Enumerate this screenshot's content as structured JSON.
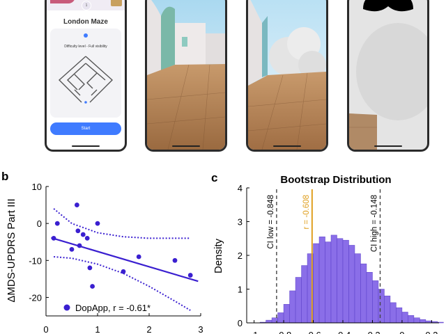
{
  "figure": {
    "panel_b_letter": "b",
    "panel_c_letter": "c"
  },
  "phones": {
    "menu": {
      "title": "London Maze",
      "subtitle": "Difficulty level - Full visibility",
      "start_label": "Start",
      "badge": "1",
      "accent_color": "#3f7bff"
    }
  },
  "chart_data": [
    {
      "type": "scatter",
      "title": "",
      "xlabel": "",
      "ylabel": "ΔMDS-UPDRS Part III",
      "xlim": [
        0,
        3
      ],
      "ylim": [
        -25,
        10
      ],
      "xticks": [
        "0",
        "1",
        "2",
        "3"
      ],
      "yticks": [
        "10",
        "0",
        "-10",
        "-20"
      ],
      "series": [
        {
          "name": "DopApp, r = -0.61*",
          "color": "#3a1fd0",
          "x": [
            0.15,
            0.22,
            0.5,
            0.6,
            0.62,
            0.65,
            0.72,
            0.8,
            0.85,
            0.9,
            1.0,
            1.5,
            1.8,
            2.5,
            2.8
          ],
          "y": [
            -4,
            0,
            -7,
            5,
            -2,
            -6,
            -3,
            -4,
            -12,
            -17,
            0,
            -13,
            -9,
            -10,
            -14
          ]
        }
      ],
      "fit": {
        "slope": -4.13,
        "intercept": -3.45,
        "color": "#3a1fd0"
      },
      "ci_band": {
        "x": [
          0.15,
          0.5,
          1.0,
          1.5,
          2.0,
          2.5,
          2.8
        ],
        "upper": [
          4,
          0,
          -2.5,
          -3.6,
          -4,
          -4,
          -4
        ],
        "lower": [
          -9,
          -9.4,
          -11,
          -13.5,
          -17,
          -21,
          -23.5
        ]
      },
      "legend": "bottom-left"
    },
    {
      "type": "bar",
      "title": "Bootstrap Distribution",
      "xlabel": "",
      "ylabel": "Density",
      "xlim": [
        -1.05,
        0.25
      ],
      "ylim": [
        0,
        4
      ],
      "xticks": [
        "-1",
        "-0.8",
        "-0.6",
        "-0.4",
        "-0.2",
        "0",
        "0.2"
      ],
      "yticks": [
        "0",
        "1",
        "2",
        "3",
        "4"
      ],
      "bar_color": "#8a6ee8",
      "bin_start": -0.96,
      "bin_width": 0.04,
      "values": [
        0.02,
        0.08,
        0.15,
        0.3,
        0.55,
        0.95,
        1.35,
        1.7,
        2.05,
        2.35,
        2.55,
        2.4,
        2.6,
        2.5,
        2.45,
        2.3,
        2.05,
        1.75,
        1.5,
        1.25,
        1.0,
        0.8,
        0.6,
        0.45,
        0.32,
        0.22,
        0.15,
        0.1,
        0.06,
        0.04,
        0.02
      ],
      "annotations": [
        {
          "label": "CI low = -0.848",
          "x": -0.848,
          "color": "#444444",
          "style": "dashed"
        },
        {
          "label": "r = -0.608",
          "x": -0.608,
          "color": "#e0a020",
          "style": "solid"
        },
        {
          "label": "CI high = -0.148",
          "x": -0.148,
          "color": "#444444",
          "style": "dashed"
        }
      ]
    }
  ]
}
